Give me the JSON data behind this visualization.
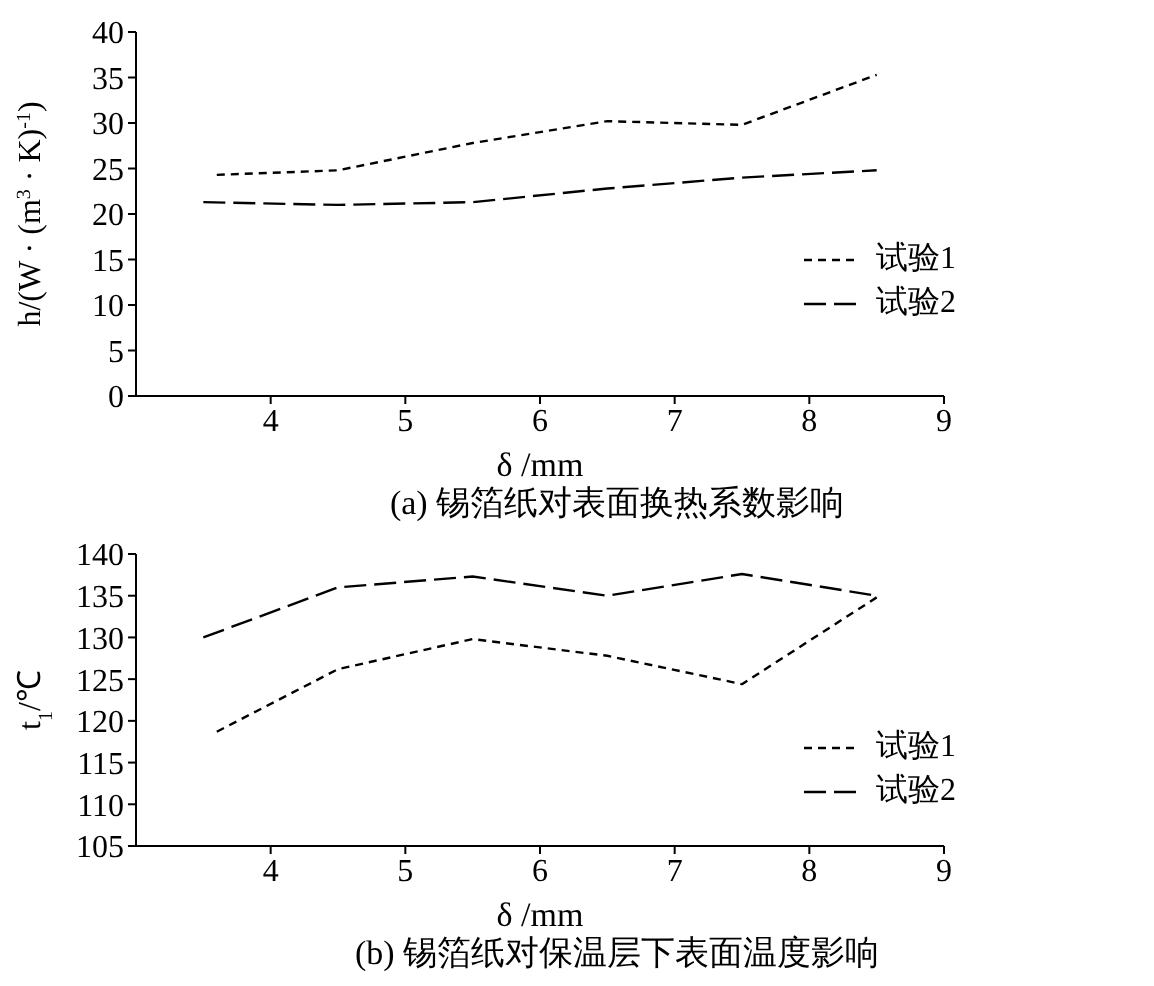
{
  "chart_data": [
    {
      "type": "line",
      "title": "(a) 锡箔纸对表面换热系数影响",
      "xlabel": "δ /mm",
      "ylabel": "h/(W · (m$^{3}$ · K)$^{-1}$)",
      "x": [
        3.6,
        4.5,
        5.5,
        6.5,
        7.5,
        8.5
      ],
      "xlim": [
        3,
        9
      ],
      "xticks": [
        4,
        5,
        6,
        7,
        8,
        9
      ],
      "ylim": [
        0,
        40
      ],
      "yticks": [
        0,
        5,
        10,
        15,
        20,
        25,
        30,
        35,
        40
      ],
      "legend": "right",
      "marker": "none",
      "series": [
        {
          "name": "试验1",
          "color": "#000000",
          "line_style": "dashed",
          "values": [
            24.3,
            24.8,
            27.8,
            30.2,
            29.8,
            35.3
          ]
        },
        {
          "name": "试验2",
          "color": "#000000",
          "line_style": "dashed",
          "x": [
            3.5,
            4.5,
            5.5,
            6.5,
            7.5,
            8.5
          ],
          "values": [
            21.3,
            21.0,
            21.3,
            22.8,
            24.0,
            24.8
          ]
        }
      ]
    },
    {
      "type": "line",
      "title": "(b) 锡箔纸对保温层下表面温度影响",
      "xlabel": "δ /mm",
      "ylabel": "t$_{1}$/℃",
      "x": [
        3.6,
        4.5,
        5.5,
        6.5,
        7.5,
        8.5
      ],
      "xlim": [
        3,
        9
      ],
      "xticks": [
        4,
        5,
        6,
        7,
        8,
        9
      ],
      "ylim": [
        105,
        140
      ],
      "yticks": [
        105,
        110,
        115,
        120,
        125,
        130,
        135,
        140
      ],
      "legend": "right",
      "marker": "none",
      "series": [
        {
          "name": "试验1",
          "color": "#000000",
          "line_style": "dashed",
          "values": [
            118.7,
            126.2,
            129.8,
            127.8,
            124.4,
            134.8
          ]
        },
        {
          "name": "试验2",
          "color": "#000000",
          "line_style": "dashed",
          "x": [
            3.5,
            4.5,
            5.5,
            6.5,
            7.5,
            8.5
          ],
          "values": [
            130.0,
            136.0,
            137.3,
            135.0,
            137.6,
            135.0
          ]
        }
      ]
    }
  ]
}
